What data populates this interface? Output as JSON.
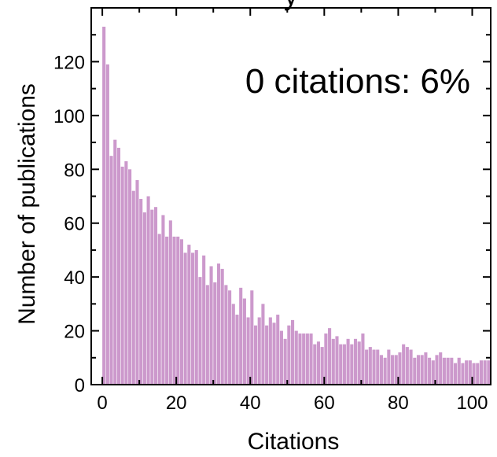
{
  "chart_data": {
    "type": "bar",
    "title": "y",
    "xlabel": "Citations",
    "ylabel": "Number of publications",
    "annotation": "0 citations: 6%",
    "x_ticks": [
      0,
      20,
      40,
      60,
      80,
      100
    ],
    "y_ticks": [
      0,
      20,
      40,
      60,
      80,
      100,
      120
    ],
    "xlim": [
      -3,
      105
    ],
    "ylim": [
      0,
      140
    ],
    "bar_color": "#cc99cc",
    "bin_width": 1,
    "x": [
      0,
      1,
      2,
      3,
      4,
      5,
      6,
      7,
      8,
      9,
      10,
      11,
      12,
      13,
      14,
      15,
      16,
      17,
      18,
      19,
      20,
      21,
      22,
      23,
      24,
      25,
      26,
      27,
      28,
      29,
      30,
      31,
      32,
      33,
      34,
      35,
      36,
      37,
      38,
      39,
      40,
      41,
      42,
      43,
      44,
      45,
      46,
      47,
      48,
      49,
      50,
      51,
      52,
      53,
      54,
      55,
      56,
      57,
      58,
      59,
      60,
      61,
      62,
      63,
      64,
      65,
      66,
      67,
      68,
      69,
      70,
      71,
      72,
      73,
      74,
      75,
      76,
      77,
      78,
      79,
      80,
      81,
      82,
      83,
      84,
      85,
      86,
      87,
      88,
      89,
      90,
      91,
      92,
      93,
      94,
      95,
      96,
      97,
      98,
      99,
      100,
      101,
      102,
      103,
      104
    ],
    "values": [
      133,
      119,
      85,
      91,
      88,
      81,
      83,
      80,
      72,
      76,
      69,
      64,
      70,
      65,
      66,
      56,
      63,
      55,
      61,
      55,
      55,
      54,
      49,
      52,
      49,
      50,
      40,
      48,
      37,
      44,
      38,
      45,
      43,
      37,
      35,
      30,
      26,
      36,
      32,
      25,
      35,
      22,
      25,
      30,
      22,
      25,
      23,
      26,
      20,
      17,
      22,
      24,
      20,
      19,
      19,
      19,
      19,
      15,
      16,
      14,
      19,
      21,
      17,
      18,
      15,
      15,
      17,
      15,
      17,
      16,
      19,
      13,
      14,
      13,
      13,
      11,
      10,
      13,
      11,
      11,
      12,
      15,
      14,
      13,
      10,
      11,
      11,
      12,
      10,
      9,
      11,
      12,
      10,
      10,
      10,
      8,
      10,
      8,
      9,
      9,
      8,
      8,
      9,
      9,
      9
    ]
  }
}
